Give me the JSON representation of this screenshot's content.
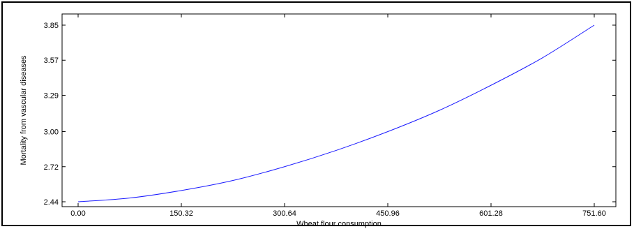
{
  "chart_data": {
    "type": "line",
    "title": "",
    "xlabel": "Wheat flour consumption",
    "ylabel": "Mortality from vascular diseases",
    "xlim": [
      0,
      751.6
    ],
    "ylim": [
      2.44,
      3.85
    ],
    "x_ticks": [
      "0.00",
      "150.32",
      "300.64",
      "450.96",
      "601.28",
      "751.60"
    ],
    "y_ticks": [
      "2.44",
      "2.72",
      "3.00",
      "3.29",
      "3.57",
      "3.85"
    ],
    "grid": false,
    "legend": "none",
    "series": [
      {
        "color": "#1a1aff",
        "x": [
          0,
          75.16,
          150.32,
          225.48,
          300.64,
          375.8,
          450.96,
          526.12,
          601.28,
          676.44,
          751.6
        ],
        "y": [
          2.44,
          2.47,
          2.53,
          2.61,
          2.72,
          2.85,
          3.0,
          3.17,
          3.37,
          3.59,
          3.85
        ]
      }
    ]
  }
}
